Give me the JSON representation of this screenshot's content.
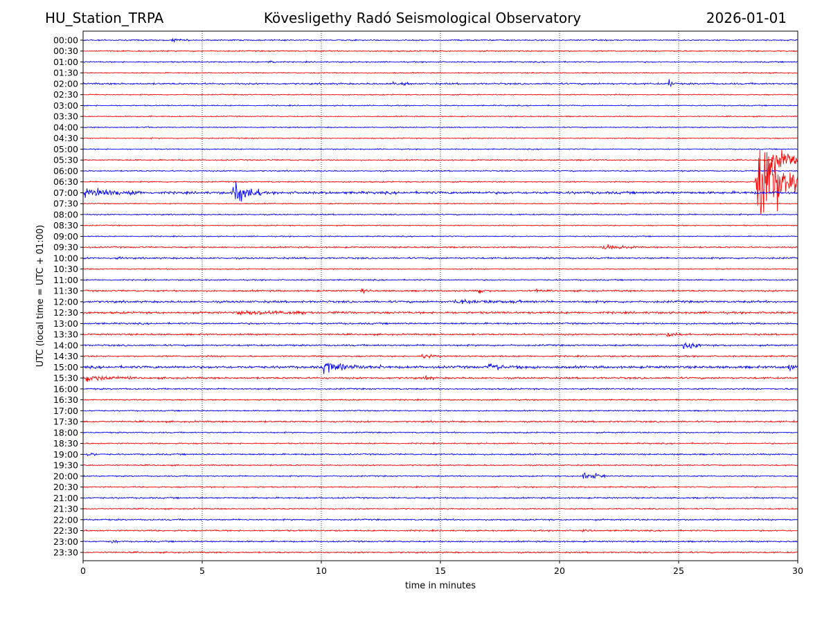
{
  "header": {
    "station": "HU_Station_TRPA",
    "observatory": "Kövesligethy Radó Seismological Observatory",
    "date": "2026-01-01"
  },
  "chart_data": {
    "type": "line",
    "title": "Kövesligethy Radó Seismological Observatory",
    "xlabel": "time in minutes",
    "ylabel": "UTC (local time = UTC + 01:00)",
    "xlim": [
      0,
      30
    ],
    "xticks": [
      "0",
      "5",
      "10",
      "15",
      "20",
      "25",
      "30"
    ],
    "vertical_gridlines_at_minutes": [
      5,
      10,
      15,
      20,
      25
    ],
    "grid": "vertical dotted",
    "trace_colors": [
      "#0000ff",
      "#ff0000"
    ],
    "row_labels": [
      "00:00",
      "00:30",
      "01:00",
      "01:30",
      "02:00",
      "02:30",
      "03:00",
      "03:30",
      "04:00",
      "04:30",
      "05:00",
      "05:30",
      "06:00",
      "06:30",
      "07:00",
      "07:30",
      "08:00",
      "08:30",
      "09:00",
      "09:30",
      "10:00",
      "10:30",
      "11:00",
      "11:30",
      "12:00",
      "12:30",
      "13:00",
      "13:30",
      "14:00",
      "14:30",
      "15:00",
      "15:30",
      "16:00",
      "16:30",
      "17:00",
      "17:30",
      "18:00",
      "18:30",
      "19:00",
      "19:30",
      "20:00",
      "20:30",
      "21:00",
      "21:30",
      "22:00",
      "22:30",
      "23:00",
      "23:30"
    ],
    "base_noise": [
      0.6,
      0.6,
      0.6,
      0.5,
      0.8,
      0.5,
      0.5,
      0.5,
      0.5,
      0.5,
      0.5,
      0.6,
      0.6,
      0.6,
      1.2,
      0.5,
      0.6,
      0.5,
      0.5,
      0.7,
      0.8,
      0.5,
      0.6,
      0.8,
      1.0,
      1.0,
      0.8,
      0.8,
      0.8,
      0.7,
      1.2,
      0.9,
      0.7,
      0.6,
      0.6,
      0.8,
      0.6,
      0.6,
      0.7,
      0.6,
      0.6,
      0.6,
      0.7,
      0.6,
      0.7,
      0.7,
      0.7,
      0.7
    ],
    "events": [
      {
        "row": "00:00",
        "minute": 3.7,
        "amplitude": 2.0,
        "duration_min": 0.8
      },
      {
        "row": "01:00",
        "minute": 7.8,
        "amplitude": 3.0,
        "duration_min": 0.4
      },
      {
        "row": "02:00",
        "minute": 24.6,
        "amplitude": 5.0,
        "duration_min": 0.3
      },
      {
        "row": "02:00",
        "minute": 13.0,
        "amplitude": 2.0,
        "duration_min": 1.0
      },
      {
        "row": "04:00",
        "minute": 2.6,
        "amplitude": 2.5,
        "duration_min": 0.2
      },
      {
        "row": "07:00",
        "minute": 0.0,
        "amplitude": 6.0,
        "duration_min": 2.5
      },
      {
        "row": "07:00",
        "minute": 6.3,
        "amplitude": 13.0,
        "duration_min": 1.2
      },
      {
        "row": "06:30",
        "minute": 28.25,
        "amplitude": 55.0,
        "duration_min": 1.75
      },
      {
        "row": "05:30",
        "minute": 28.9,
        "amplitude": 16.0,
        "duration_min": 1.1
      },
      {
        "row": "09:30",
        "minute": 21.8,
        "amplitude": 3.0,
        "duration_min": 1.5
      },
      {
        "row": "10:00",
        "minute": 1.4,
        "amplitude": 3.0,
        "duration_min": 0.3
      },
      {
        "row": "11:30",
        "minute": 11.7,
        "amplitude": 4.0,
        "duration_min": 0.4
      },
      {
        "row": "11:30",
        "minute": 16.6,
        "amplitude": 3.0,
        "duration_min": 0.6
      },
      {
        "row": "11:30",
        "minute": 19.0,
        "amplitude": 3.0,
        "duration_min": 0.4
      },
      {
        "row": "12:00",
        "minute": 15.5,
        "amplitude": 2.5,
        "duration_min": 4.0
      },
      {
        "row": "12:30",
        "minute": 6.5,
        "amplitude": 2.5,
        "duration_min": 5.0
      },
      {
        "row": "13:30",
        "minute": 24.5,
        "amplitude": 2.5,
        "duration_min": 1.0
      },
      {
        "row": "14:00",
        "minute": 25.2,
        "amplitude": 6.0,
        "duration_min": 0.8
      },
      {
        "row": "14:30",
        "minute": 14.2,
        "amplitude": 4.0,
        "duration_min": 0.8
      },
      {
        "row": "15:00",
        "minute": 10.1,
        "amplitude": 6.0,
        "duration_min": 2.5
      },
      {
        "row": "15:00",
        "minute": 17.0,
        "amplitude": 4.0,
        "duration_min": 2.0
      },
      {
        "row": "15:00",
        "minute": 29.6,
        "amplitude": 5.0,
        "duration_min": 0.4
      },
      {
        "row": "15:30",
        "minute": 0.1,
        "amplitude": 4.0,
        "duration_min": 2.0
      },
      {
        "row": "15:30",
        "minute": 14.4,
        "amplitude": 4.0,
        "duration_min": 0.3
      },
      {
        "row": "19:00",
        "minute": 0.2,
        "amplitude": 4.0,
        "duration_min": 0.4
      },
      {
        "row": "20:00",
        "minute": 21.0,
        "amplitude": 6.0,
        "duration_min": 0.9
      },
      {
        "row": "22:30",
        "minute": 21.0,
        "amplitude": 3.0,
        "duration_min": 0.4
      },
      {
        "row": "23:00",
        "minute": 1.2,
        "amplitude": 2.5,
        "duration_min": 0.4
      }
    ]
  }
}
